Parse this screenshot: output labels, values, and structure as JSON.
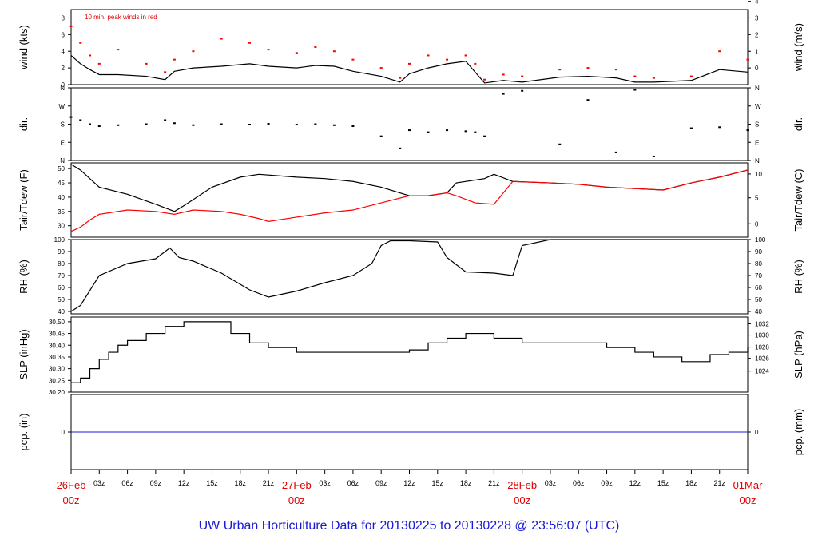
{
  "caption": "UW Urban Horticulture Data for 20130225  to  20130228 @ 23:56:07  (UTC)",
  "colors": {
    "line": "#000000",
    "dew": "#ff0000",
    "gust": "#ff0000",
    "precip": "#1a1ad6",
    "caption": "#1a1ad6",
    "day_label": "#e00000"
  },
  "chart_data": [
    {
      "type": "line",
      "panel": "wind",
      "ylabel": "wind (kts)",
      "ylabel_right": "wind (m/s)",
      "annotation": "10 min. peak winds in red",
      "ylim": [
        0,
        9
      ],
      "yticks": [
        "0",
        "2",
        "4",
        "6",
        "8"
      ],
      "yticks_right": [
        "0",
        "1",
        "2",
        "3",
        "4"
      ],
      "series": [
        {
          "x": [
            0,
            1,
            2,
            3,
            5,
            8,
            10,
            11,
            13,
            16,
            19,
            21,
            24,
            26,
            28,
            30,
            33,
            35,
            36,
            38,
            40,
            42,
            43,
            44,
            46,
            48,
            52,
            55,
            58,
            60,
            62,
            66,
            69,
            72
          ],
          "values": [
            3.5,
            2.5,
            1.8,
            1.2,
            1.2,
            1.0,
            0.6,
            1.6,
            2.0,
            2.2,
            2.5,
            2.2,
            2.0,
            2.3,
            2.2,
            1.6,
            1.0,
            0.3,
            1.3,
            2.0,
            2.5,
            2.8,
            1.5,
            0.2,
            0.5,
            0.3,
            0.9,
            1.0,
            0.8,
            0.3,
            0.3,
            0.5,
            1.8,
            1.5
          ]
        },
        {
          "name": "10 min. peak winds in red",
          "x": [
            0,
            1,
            2,
            3,
            5,
            8,
            10,
            11,
            13,
            16,
            19,
            21,
            24,
            26,
            28,
            30,
            33,
            35,
            36,
            38,
            40,
            42,
            43,
            44,
            46,
            48,
            52,
            55,
            58,
            60,
            62,
            66,
            69,
            72
          ],
          "values": [
            7.0,
            5.0,
            3.5,
            2.5,
            4.2,
            2.5,
            1.5,
            3.0,
            4.0,
            5.5,
            5.0,
            4.2,
            3.8,
            4.5,
            4.0,
            3.0,
            2.0,
            0.8,
            2.5,
            3.5,
            3.0,
            3.5,
            2.5,
            0.6,
            1.2,
            1.0,
            1.8,
            2.0,
            1.8,
            1.0,
            0.8,
            1.0,
            4.0,
            3.0
          ]
        }
      ]
    },
    {
      "type": "scatter",
      "panel": "dir",
      "ylabel": "dir.",
      "ylabel_right": "dir.",
      "ylim": [
        0,
        360
      ],
      "yticks": [
        "N",
        "E",
        "S",
        "W",
        "N"
      ],
      "yticks_right": [
        "N",
        "E",
        "S",
        "W",
        "N"
      ],
      "series": [
        {
          "x": [
            0,
            1,
            2,
            3,
            5,
            8,
            10,
            11,
            13,
            16,
            19,
            21,
            24,
            26,
            28,
            30,
            33,
            35,
            36,
            38,
            40,
            42,
            43,
            44,
            46,
            48,
            52,
            55,
            58,
            60,
            62,
            66,
            69,
            72
          ],
          "values": [
            215,
            200,
            180,
            170,
            175,
            180,
            200,
            185,
            175,
            180,
            178,
            182,
            178,
            180,
            175,
            170,
            120,
            60,
            150,
            140,
            150,
            145,
            140,
            120,
            330,
            345,
            80,
            300,
            40,
            350,
            20,
            160,
            165,
            150
          ]
        }
      ]
    },
    {
      "type": "line",
      "panel": "temperature",
      "ylabel": "Tair/Tdew (F)",
      "ylabel_right": "Tair/Tdew (C)",
      "ylim": [
        26,
        52
      ],
      "yticks": [
        "30",
        "35",
        "40",
        "45",
        "50"
      ],
      "yticks_right": [
        "0",
        "5",
        "10"
      ],
      "series": [
        {
          "x": [
            0,
            1,
            3,
            6,
            9,
            11,
            12,
            15,
            18,
            20,
            24,
            27,
            30,
            33,
            36,
            38,
            40,
            41,
            44,
            45,
            47,
            51,
            54,
            57,
            60,
            63,
            66,
            69,
            72
          ],
          "values": [
            51.5,
            49.5,
            43.5,
            41.0,
            37.5,
            35.0,
            37.0,
            43.5,
            47.0,
            48.0,
            47.0,
            46.5,
            45.5,
            43.5,
            40.5,
            40.5,
            41.5,
            45.0,
            46.5,
            48.0,
            45.5,
            45.0,
            44.5,
            43.5,
            43.0,
            42.5,
            45.0,
            47.0,
            49.5
          ]
        },
        {
          "x": [
            0,
            1,
            2,
            3,
            6,
            9,
            11,
            13,
            16,
            18,
            20,
            21,
            24,
            27,
            30,
            33,
            36,
            38,
            40,
            41,
            43,
            45,
            47,
            51,
            54,
            57,
            60,
            63,
            66,
            69,
            72
          ],
          "values": [
            28.0,
            29.5,
            32.0,
            34.0,
            35.5,
            35.0,
            34.0,
            35.5,
            35.0,
            34.0,
            32.5,
            31.5,
            33.0,
            34.5,
            35.5,
            38.0,
            40.5,
            40.5,
            41.5,
            40.5,
            38.0,
            37.5,
            45.5,
            45.0,
            44.5,
            43.5,
            43.0,
            42.5,
            45.0,
            47.0,
            49.5
          ]
        }
      ]
    },
    {
      "type": "line",
      "panel": "humidity",
      "ylabel": "RH (%)",
      "ylabel_right": "RH (%)",
      "ylim": [
        38,
        100
      ],
      "yticks": [
        "40",
        "50",
        "60",
        "70",
        "80",
        "90",
        "100"
      ],
      "yticks_right": [
        "40",
        "50",
        "60",
        "70",
        "80",
        "90",
        "100"
      ],
      "series": [
        {
          "x": [
            0,
            1,
            3,
            6,
            9,
            10.5,
            11.5,
            13,
            16,
            19,
            21,
            24,
            27,
            30,
            32,
            33,
            34,
            36,
            39,
            40,
            42,
            45,
            47,
            48,
            51,
            54,
            60,
            66,
            72
          ],
          "values": [
            40,
            45,
            70,
            80,
            84,
            93,
            85,
            82,
            72,
            58,
            52,
            57,
            64,
            70,
            80,
            95,
            99,
            99,
            98,
            85,
            73,
            72,
            70,
            95,
            100,
            100,
            100,
            100,
            100
          ]
        }
      ]
    },
    {
      "type": "line",
      "panel": "pressure",
      "ylabel": "SLP (inHg)",
      "ylabel_right": "SLP (hPa)",
      "ylim": [
        30.2,
        30.52
      ],
      "yticks": [
        "30.20",
        "30.25",
        "30.30",
        "30.35",
        "30.40",
        "30.45",
        "30.50"
      ],
      "yticks_right": [
        "1024",
        "1026",
        "1028",
        "1030",
        "1032"
      ],
      "series": [
        {
          "x": [
            0,
            1,
            2,
            3,
            4,
            5,
            6,
            8,
            10,
            12,
            15,
            17,
            19,
            21,
            24,
            27,
            30,
            33,
            36,
            38,
            40,
            42,
            45,
            48,
            51,
            54,
            57,
            60,
            62,
            65,
            68,
            70,
            72
          ],
          "values": [
            30.24,
            30.26,
            30.3,
            30.34,
            30.37,
            30.4,
            30.42,
            30.45,
            30.48,
            30.5,
            30.5,
            30.45,
            30.41,
            30.39,
            30.37,
            30.37,
            30.37,
            30.37,
            30.38,
            30.41,
            30.43,
            30.45,
            30.43,
            30.41,
            30.41,
            30.41,
            30.39,
            30.37,
            30.35,
            30.33,
            30.36,
            30.37,
            30.39
          ]
        }
      ]
    },
    {
      "type": "line",
      "panel": "precip",
      "ylabel": "pcp. (in)",
      "ylabel_right": "pcp. (mm)",
      "ylim": [
        -1,
        1
      ],
      "yticks": [
        "0"
      ],
      "yticks_right": [
        "0"
      ],
      "series": [
        {
          "x": [
            0,
            72
          ],
          "values": [
            0,
            0
          ]
        }
      ]
    }
  ],
  "x_axis": {
    "hour_labels": [
      "03z",
      "06z",
      "09z",
      "12z",
      "15z",
      "18z",
      "21z"
    ],
    "days": [
      {
        "day": "26Feb",
        "hour": "00z"
      },
      {
        "day": "27Feb",
        "hour": "00z"
      },
      {
        "day": "28Feb",
        "hour": "00z"
      },
      {
        "day": "01Mar",
        "hour": "00z"
      }
    ]
  }
}
